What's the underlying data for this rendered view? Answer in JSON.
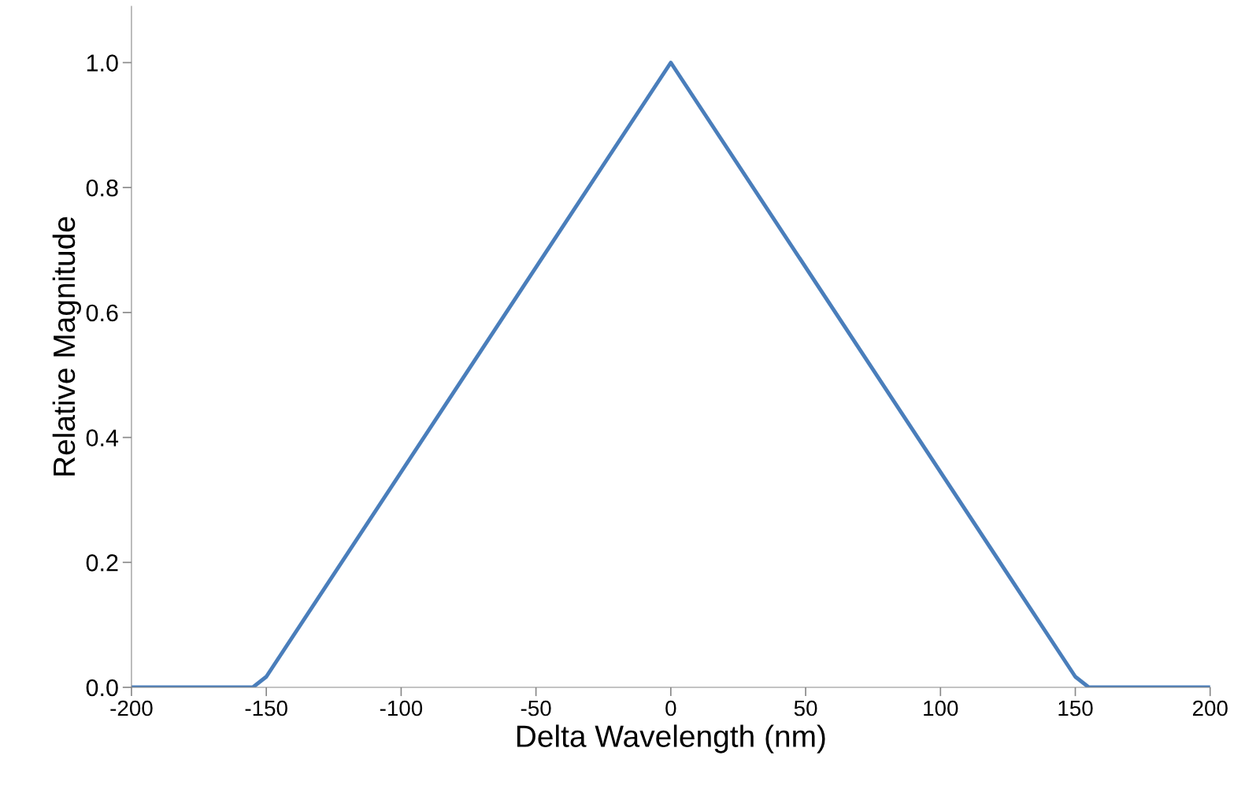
{
  "chart_data": {
    "type": "line",
    "xlabel": "Delta Wavelength (nm)",
    "ylabel": "Relative Magnitude",
    "x": [
      -200,
      -155,
      -150,
      0,
      150,
      155,
      200
    ],
    "series": [
      {
        "color": "#4a7ebb",
        "values": [
          0,
          0,
          0.017,
          1.0,
          0.017,
          0,
          0
        ]
      }
    ],
    "xlim": [
      -200,
      200
    ],
    "xticks": [
      -200,
      -150,
      -100,
      -50,
      0,
      50,
      100,
      150,
      200
    ],
    "ylim": [
      0,
      1.09
    ],
    "yticks": [
      {
        "value": 0,
        "label": "0.0"
      },
      {
        "value": 0.2,
        "label": "0.2"
      },
      {
        "value": 0.4,
        "label": "0.4"
      },
      {
        "value": 0.6,
        "label": "0.6"
      },
      {
        "value": 0.8,
        "label": "0.8"
      },
      {
        "value": 1.0,
        "label": "1.0"
      }
    ],
    "grid": false,
    "legend": false,
    "marker": "none",
    "line_style": "solid"
  }
}
